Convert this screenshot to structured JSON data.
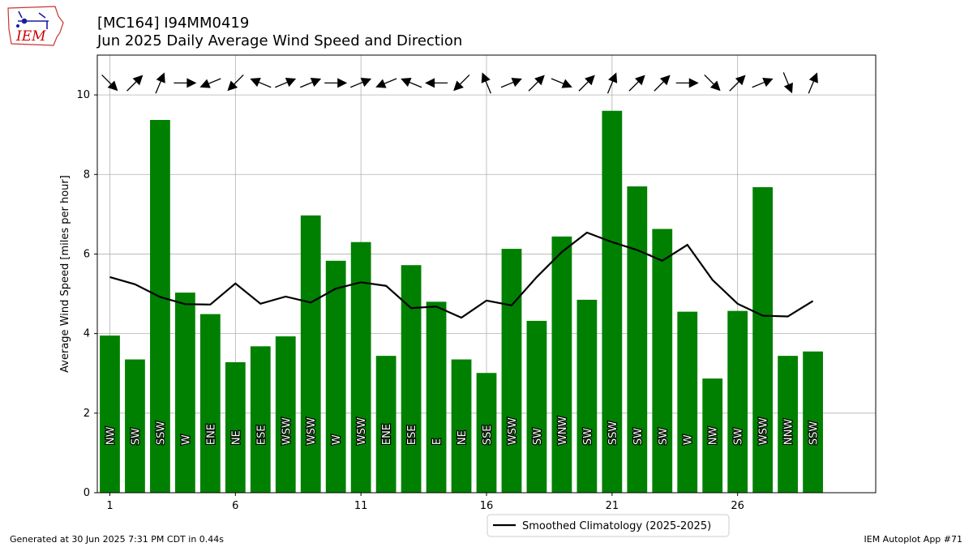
{
  "header": {
    "title_line1": "[MC164] I94MM0419",
    "title_line2": "Jun 2025 Daily Average Wind Speed and Direction"
  },
  "logo": {
    "text": "IEM"
  },
  "footer": {
    "generated": "Generated at 30 Jun 2025 7:31 PM CDT in 0.44s",
    "app": "IEM Autoplot App #71"
  },
  "colors": {
    "bar": "#008000",
    "line": "#000000",
    "grid": "#b0b0b0",
    "logo_text": "#cc0000"
  },
  "chart_data": {
    "type": "bar",
    "title": "Jun 2025 Daily Average Wind Speed and Direction",
    "ylabel": "Average Wind Speed [miles per hour]",
    "xlabel": "",
    "xlim": [
      0.5,
      31.5
    ],
    "ylim": [
      0,
      11
    ],
    "xticks": [
      1,
      6,
      11,
      16,
      21,
      26
    ],
    "yticks": [
      0,
      2,
      4,
      6,
      8,
      10
    ],
    "grid": true,
    "legend_position": "below center",
    "days": [
      1,
      2,
      3,
      4,
      5,
      6,
      7,
      8,
      9,
      10,
      11,
      12,
      13,
      14,
      15,
      16,
      17,
      18,
      19,
      20,
      21,
      22,
      23,
      24,
      25,
      26,
      27,
      28,
      29
    ],
    "series": [
      {
        "type": "bar",
        "values": [
          3.95,
          3.35,
          9.37,
          5.03,
          4.49,
          3.28,
          3.68,
          3.93,
          6.97,
          5.83,
          6.3,
          3.44,
          5.72,
          4.8,
          3.35,
          3.01,
          6.13,
          4.32,
          6.44,
          4.85,
          9.6,
          7.7,
          6.63,
          4.55,
          2.87,
          4.57,
          7.68,
          3.44,
          3.55
        ],
        "direction_labels": [
          "NW",
          "SW",
          "SSW",
          "W",
          "ENE",
          "NE",
          "ESE",
          "WSW",
          "WSW",
          "W",
          "WSW",
          "ENE",
          "ESE",
          "E",
          "NE",
          "SSE",
          "WSW",
          "SW",
          "WNW",
          "SW",
          "SSW",
          "SW",
          "SW",
          "W",
          "NW",
          "SW",
          "WSW",
          "NNW",
          "SSW"
        ],
        "direction_degrees": [
          315,
          225,
          202.5,
          270,
          67.5,
          45,
          112.5,
          247.5,
          247.5,
          270,
          247.5,
          67.5,
          112.5,
          90,
          45,
          157.5,
          247.5,
          225,
          292.5,
          225,
          202.5,
          225,
          225,
          270,
          315,
          225,
          247.5,
          337.5,
          202.5
        ]
      },
      {
        "type": "line",
        "name": "Smoothed Climatology (2025-2025)",
        "values": [
          5.42,
          5.24,
          4.92,
          4.74,
          4.73,
          5.26,
          4.75,
          4.93,
          4.78,
          5.13,
          5.29,
          5.2,
          4.64,
          4.68,
          4.4,
          4.83,
          4.71,
          5.42,
          6.05,
          6.54,
          6.3,
          6.1,
          5.83,
          6.23,
          5.35,
          4.75,
          4.45,
          4.43,
          4.82
        ]
      }
    ]
  }
}
